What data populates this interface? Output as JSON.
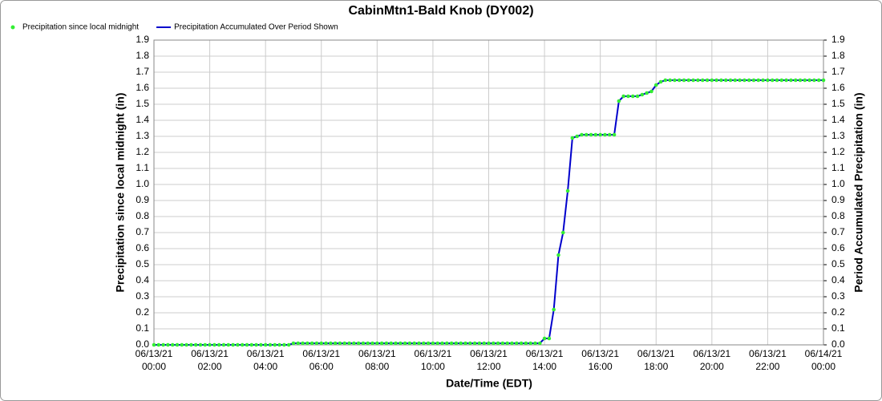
{
  "chart_data": {
    "type": "line",
    "title": "CabinMtn1-Bald Knob (DY002)",
    "xlabel": "Date/Time (EDT)",
    "ylabel": "Precipitation since local midnight (in)",
    "y2label": "Period Accumulated Precipitation (in)",
    "grid": true,
    "legend": "top-left",
    "xlim": [
      "06/13/21 00:00",
      "06/14/21 00:00"
    ],
    "xticks": [
      "06/13/21 00:00",
      "06/13/21 02:00",
      "06/13/21 04:00",
      "06/13/21 06:00",
      "06/13/21 08:00",
      "06/13/21 10:00",
      "06/13/21 12:00",
      "06/13/21 14:00",
      "06/13/21 16:00",
      "06/13/21 18:00",
      "06/13/21 20:00",
      "06/13/21 22:00",
      "06/14/21 00:00"
    ],
    "ylim": [
      0,
      1.9
    ],
    "yticks": [
      {
        "value": 0,
        "label": "0.0"
      },
      {
        "value": 0.1,
        "label": "0.1"
      },
      {
        "value": 0.2,
        "label": "0.2"
      },
      {
        "value": 0.3,
        "label": "0.3"
      },
      {
        "value": 0.4,
        "label": "0.4"
      },
      {
        "value": 0.5,
        "label": "0.5"
      },
      {
        "value": 0.6,
        "label": "0.6"
      },
      {
        "value": 0.7,
        "label": "0.7"
      },
      {
        "value": 0.8,
        "label": "0.8"
      },
      {
        "value": 0.9,
        "label": "0.9"
      },
      {
        "value": 1,
        "label": "1.0"
      },
      {
        "value": 1.1,
        "label": "1.1"
      },
      {
        "value": 1.2,
        "label": "1.2"
      },
      {
        "value": 1.3,
        "label": "1.3"
      },
      {
        "value": 1.4,
        "label": "1.4"
      },
      {
        "value": 1.5,
        "label": "1.5"
      },
      {
        "value": 1.6,
        "label": "1.6"
      },
      {
        "value": 1.7,
        "label": "1.7"
      },
      {
        "value": 1.8,
        "label": "1.8"
      },
      {
        "value": 1.9,
        "label": "1.9"
      }
    ],
    "y2lim": [
      0,
      1.9
    ],
    "y2ticks": [
      {
        "value": 0,
        "label": "0.0"
      },
      {
        "value": 0.1,
        "label": "0.1"
      },
      {
        "value": 0.2,
        "label": "0.2"
      },
      {
        "value": 0.3,
        "label": "0.3"
      },
      {
        "value": 0.4,
        "label": "0.4"
      },
      {
        "value": 0.5,
        "label": "0.5"
      },
      {
        "value": 0.6,
        "label": "0.6"
      },
      {
        "value": 0.7,
        "label": "0.7"
      },
      {
        "value": 0.8,
        "label": "0.8"
      },
      {
        "value": 0.9,
        "label": "0.9"
      },
      {
        "value": 1,
        "label": "1.0"
      },
      {
        "value": 1.1,
        "label": "1.1"
      },
      {
        "value": 1.2,
        "label": "1.2"
      },
      {
        "value": 1.3,
        "label": "1.3"
      },
      {
        "value": 1.4,
        "label": "1.4"
      },
      {
        "value": 1.5,
        "label": "1.5"
      },
      {
        "value": 1.6,
        "label": "1.6"
      },
      {
        "value": 1.7,
        "label": "1.7"
      },
      {
        "value": 1.8,
        "label": "1.8"
      },
      {
        "value": 1.9,
        "label": "1.9"
      }
    ],
    "x": [
      "06/13/21 00:00",
      "06/13/21 00:10",
      "06/13/21 00:20",
      "06/13/21 00:30",
      "06/13/21 00:40",
      "06/13/21 00:50",
      "06/13/21 01:00",
      "06/13/21 01:10",
      "06/13/21 01:20",
      "06/13/21 01:30",
      "06/13/21 01:40",
      "06/13/21 01:50",
      "06/13/21 02:00",
      "06/13/21 02:10",
      "06/13/21 02:20",
      "06/13/21 02:30",
      "06/13/21 02:40",
      "06/13/21 02:50",
      "06/13/21 03:00",
      "06/13/21 03:10",
      "06/13/21 03:20",
      "06/13/21 03:30",
      "06/13/21 03:40",
      "06/13/21 03:50",
      "06/13/21 04:00",
      "06/13/21 04:10",
      "06/13/21 04:20",
      "06/13/21 04:30",
      "06/13/21 04:40",
      "06/13/21 04:50",
      "06/13/21 05:00",
      "06/13/21 05:10",
      "06/13/21 05:20",
      "06/13/21 05:30",
      "06/13/21 05:40",
      "06/13/21 05:50",
      "06/13/21 06:00",
      "06/13/21 06:10",
      "06/13/21 06:20",
      "06/13/21 06:30",
      "06/13/21 06:40",
      "06/13/21 06:50",
      "06/13/21 07:00",
      "06/13/21 07:10",
      "06/13/21 07:20",
      "06/13/21 07:30",
      "06/13/21 07:40",
      "06/13/21 07:50",
      "06/13/21 08:00",
      "06/13/21 08:10",
      "06/13/21 08:20",
      "06/13/21 08:30",
      "06/13/21 08:40",
      "06/13/21 08:50",
      "06/13/21 09:00",
      "06/13/21 09:10",
      "06/13/21 09:20",
      "06/13/21 09:30",
      "06/13/21 09:40",
      "06/13/21 09:50",
      "06/13/21 10:00",
      "06/13/21 10:10",
      "06/13/21 10:20",
      "06/13/21 10:30",
      "06/13/21 10:40",
      "06/13/21 10:50",
      "06/13/21 11:00",
      "06/13/21 11:10",
      "06/13/21 11:20",
      "06/13/21 11:30",
      "06/13/21 11:40",
      "06/13/21 11:50",
      "06/13/21 12:00",
      "06/13/21 12:10",
      "06/13/21 12:20",
      "06/13/21 12:30",
      "06/13/21 12:40",
      "06/13/21 12:50",
      "06/13/21 13:00",
      "06/13/21 13:10",
      "06/13/21 13:20",
      "06/13/21 13:30",
      "06/13/21 13:40",
      "06/13/21 13:50",
      "06/13/21 14:00",
      "06/13/21 14:10",
      "06/13/21 14:20",
      "06/13/21 14:30",
      "06/13/21 14:40",
      "06/13/21 14:50",
      "06/13/21 15:00",
      "06/13/21 15:10",
      "06/13/21 15:20",
      "06/13/21 15:30",
      "06/13/21 15:40",
      "06/13/21 15:50",
      "06/13/21 16:00",
      "06/13/21 16:10",
      "06/13/21 16:20",
      "06/13/21 16:30",
      "06/13/21 16:40",
      "06/13/21 16:50",
      "06/13/21 17:00",
      "06/13/21 17:10",
      "06/13/21 17:20",
      "06/13/21 17:30",
      "06/13/21 17:40",
      "06/13/21 17:50",
      "06/13/21 18:00",
      "06/13/21 18:10",
      "06/13/21 18:20",
      "06/13/21 18:30",
      "06/13/21 18:40",
      "06/13/21 18:50",
      "06/13/21 19:00",
      "06/13/21 19:10",
      "06/13/21 19:20",
      "06/13/21 19:30",
      "06/13/21 19:40",
      "06/13/21 19:50",
      "06/13/21 20:00",
      "06/13/21 20:10",
      "06/13/21 20:20",
      "06/13/21 20:30",
      "06/13/21 20:40",
      "06/13/21 20:50",
      "06/13/21 21:00",
      "06/13/21 21:10",
      "06/13/21 21:20",
      "06/13/21 21:30",
      "06/13/21 21:40",
      "06/13/21 21:50",
      "06/13/21 22:00",
      "06/13/21 22:10",
      "06/13/21 22:20",
      "06/13/21 22:30",
      "06/13/21 22:40",
      "06/13/21 22:50",
      "06/13/21 23:00",
      "06/13/21 23:10",
      "06/13/21 23:20",
      "06/13/21 23:30",
      "06/13/21 23:40",
      "06/13/21 23:50",
      "06/14/21 00:00"
    ],
    "series": [
      {
        "name": "Precipitation since local midnight",
        "color": "#33ee33",
        "mode": "markers",
        "values": [
          0,
          0,
          0,
          0,
          0,
          0,
          0,
          0,
          0,
          0,
          0,
          0,
          0,
          0,
          0,
          0,
          0,
          0,
          0,
          0,
          0,
          0,
          0,
          0,
          0,
          0,
          0,
          0,
          0,
          0,
          0.01,
          0.01,
          0.01,
          0.01,
          0.01,
          0.01,
          0.01,
          0.01,
          0.01,
          0.01,
          0.01,
          0.01,
          0.01,
          0.01,
          0.01,
          0.01,
          0.01,
          0.01,
          0.01,
          0.01,
          0.01,
          0.01,
          0.01,
          0.01,
          0.01,
          0.01,
          0.01,
          0.01,
          0.01,
          0.01,
          0.01,
          0.01,
          0.01,
          0.01,
          0.01,
          0.01,
          0.01,
          0.01,
          0.01,
          0.01,
          0.01,
          0.01,
          0.01,
          0.01,
          0.01,
          0.01,
          0.01,
          0.01,
          0.01,
          0.01,
          0.01,
          0.01,
          0.01,
          0.01,
          0.04,
          0.04,
          0.22,
          0.56,
          0.7,
          0.96,
          1.29,
          1.3,
          1.31,
          1.31,
          1.31,
          1.31,
          1.31,
          1.31,
          1.31,
          1.31,
          1.52,
          1.55,
          1.55,
          1.55,
          1.55,
          1.56,
          1.57,
          1.58,
          1.62,
          1.64,
          1.65,
          1.65,
          1.65,
          1.65,
          1.65,
          1.65,
          1.65,
          1.65,
          1.65,
          1.65,
          1.65,
          1.65,
          1.65,
          1.65,
          1.65,
          1.65,
          1.65,
          1.65,
          1.65,
          1.65,
          1.65,
          1.65,
          1.65,
          1.65,
          1.65,
          1.65,
          1.65,
          1.65,
          1.65,
          1.65,
          1.65,
          1.65,
          1.65,
          1.65,
          1.65
        ]
      },
      {
        "name": "Precipitation Accumulated Over Period Shown",
        "color": "#0000cc",
        "mode": "line",
        "axis": "y2",
        "values": [
          0,
          0,
          0,
          0,
          0,
          0,
          0,
          0,
          0,
          0,
          0,
          0,
          0,
          0,
          0,
          0,
          0,
          0,
          0,
          0,
          0,
          0,
          0,
          0,
          0,
          0,
          0,
          0,
          0,
          0,
          0.01,
          0.01,
          0.01,
          0.01,
          0.01,
          0.01,
          0.01,
          0.01,
          0.01,
          0.01,
          0.01,
          0.01,
          0.01,
          0.01,
          0.01,
          0.01,
          0.01,
          0.01,
          0.01,
          0.01,
          0.01,
          0.01,
          0.01,
          0.01,
          0.01,
          0.01,
          0.01,
          0.01,
          0.01,
          0.01,
          0.01,
          0.01,
          0.01,
          0.01,
          0.01,
          0.01,
          0.01,
          0.01,
          0.01,
          0.01,
          0.01,
          0.01,
          0.01,
          0.01,
          0.01,
          0.01,
          0.01,
          0.01,
          0.01,
          0.01,
          0.01,
          0.01,
          0.01,
          0.01,
          0.04,
          0.04,
          0.22,
          0.56,
          0.7,
          0.96,
          1.29,
          1.3,
          1.31,
          1.31,
          1.31,
          1.31,
          1.31,
          1.31,
          1.31,
          1.31,
          1.52,
          1.55,
          1.55,
          1.55,
          1.55,
          1.56,
          1.57,
          1.58,
          1.62,
          1.64,
          1.65,
          1.65,
          1.65,
          1.65,
          1.65,
          1.65,
          1.65,
          1.65,
          1.65,
          1.65,
          1.65,
          1.65,
          1.65,
          1.65,
          1.65,
          1.65,
          1.65,
          1.65,
          1.65,
          1.65,
          1.65,
          1.65,
          1.65,
          1.65,
          1.65,
          1.65,
          1.65,
          1.65,
          1.65,
          1.65,
          1.65,
          1.65,
          1.65,
          1.65,
          1.65
        ]
      }
    ]
  }
}
